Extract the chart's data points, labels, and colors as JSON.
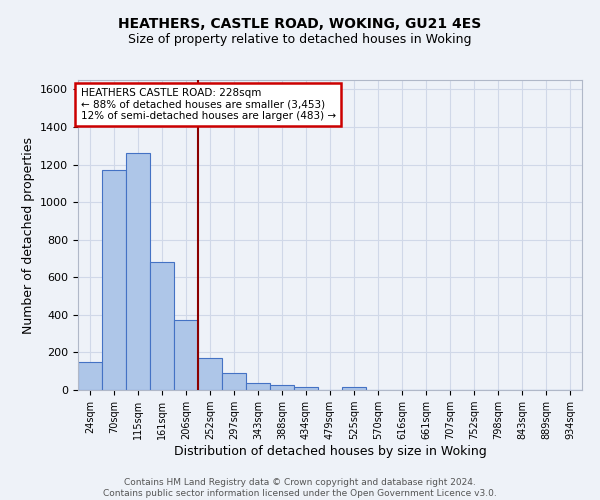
{
  "title": "HEATHERS, CASTLE ROAD, WOKING, GU21 4ES",
  "subtitle": "Size of property relative to detached houses in Woking",
  "xlabel": "Distribution of detached houses by size in Woking",
  "ylabel": "Number of detached properties",
  "footer_line1": "Contains HM Land Registry data © Crown copyright and database right 2024.",
  "footer_line2": "Contains public sector information licensed under the Open Government Licence v3.0.",
  "categories": [
    "24sqm",
    "70sqm",
    "115sqm",
    "161sqm",
    "206sqm",
    "252sqm",
    "297sqm",
    "343sqm",
    "388sqm",
    "434sqm",
    "479sqm",
    "525sqm",
    "570sqm",
    "616sqm",
    "661sqm",
    "707sqm",
    "752sqm",
    "798sqm",
    "843sqm",
    "889sqm",
    "934sqm"
  ],
  "values": [
    150,
    1170,
    1260,
    680,
    375,
    170,
    90,
    38,
    28,
    18,
    0,
    15,
    0,
    0,
    0,
    0,
    0,
    0,
    0,
    0,
    0
  ],
  "bar_color": "#aec6e8",
  "bar_edge_color": "#4472c4",
  "grid_color": "#d0d8e8",
  "background_color": "#eef2f8",
  "property_line_color": "#8b0000",
  "annotation_text_line1": "HEATHERS CASTLE ROAD: 228sqm",
  "annotation_text_line2": "← 88% of detached houses are smaller (3,453)",
  "annotation_text_line3": "12% of semi-detached houses are larger (483) →",
  "annotation_box_color": "#ffffff",
  "annotation_border_color": "#cc0000",
  "ylim": [
    0,
    1650
  ],
  "yticks": [
    0,
    200,
    400,
    600,
    800,
    1000,
    1200,
    1400,
    1600
  ]
}
